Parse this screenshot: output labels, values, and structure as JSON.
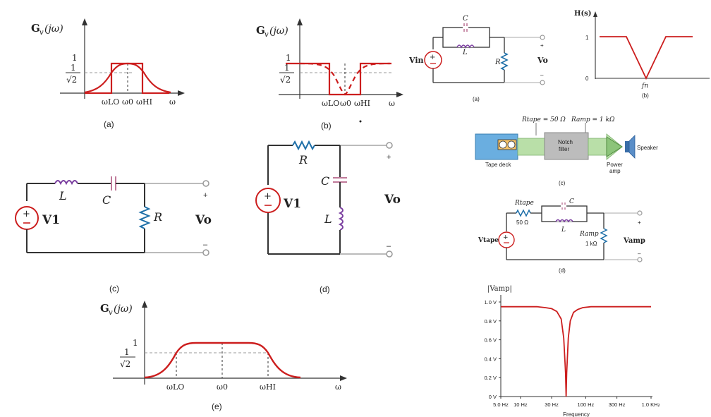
{
  "panel_a": {
    "ylabel": "G",
    "ylabel_sub": "v",
    "ylabel_arg": "(jω)",
    "tick_one": "1",
    "frac_num": "1",
    "frac_den": "√2",
    "x_lo": "ωLO",
    "x_0": "ω0",
    "x_hi": "ωHI",
    "x_omega": "ω",
    "caption": "(a)"
  },
  "panel_b": {
    "ylabel": "G",
    "ylabel_sub": "v",
    "ylabel_arg": "(jω)",
    "tick_one": "1",
    "frac_num": "1",
    "frac_den": "√2",
    "x_lo": "ωLO",
    "x_0": "ω0",
    "x_hi": "ωHI",
    "x_omega": "ω",
    "caption": "(b)"
  },
  "panel_c": {
    "L": "L",
    "C": "C",
    "R": "R",
    "source": "V1",
    "output": "Vo",
    "plus": "+",
    "minus": "–",
    "caption": "(c)"
  },
  "panel_d": {
    "R": "R",
    "C": "C",
    "L": "L",
    "source": "V1",
    "output": "Vo",
    "plus": "+",
    "minus": "–",
    "caption": "(d)"
  },
  "panel_e": {
    "ylabel": "G",
    "ylabel_sub": "v",
    "ylabel_arg": "(jω)",
    "tick_one": "1",
    "frac_num": "1",
    "frac_den": "√2",
    "x_lo": "ωLO",
    "x_0": "ω0",
    "x_hi": "ωHI",
    "x_omega": "ω",
    "caption": "(e)"
  },
  "right_a": {
    "C": "C",
    "L": "L",
    "R": "R",
    "source": "Vin",
    "output": "Vo",
    "plus": "+",
    "minus": "–",
    "caption": "(a)"
  },
  "right_b": {
    "ylabel": "H(s)",
    "tick_one": "1",
    "tick_zero": "0",
    "fn": "fn",
    "caption": "(b)"
  },
  "right_c": {
    "r_tape": "Rtape = 50 Ω",
    "r_amp": "Ramp = 1 kΩ",
    "tape_deck": "Tape deck",
    "notch_1": "Notch",
    "notch_2": "filter",
    "power_1": "Power",
    "power_2": "amp",
    "speaker": "Speaker",
    "caption": "(c)"
  },
  "right_d": {
    "r_tape": "Rtape",
    "r_tape_val": "50 Ω",
    "C": "C",
    "L": "L",
    "r_amp": "Ramp",
    "r_amp_val": "1 kΩ",
    "source": "Vtape",
    "output": "Vamp",
    "plus": "+",
    "minus": "–",
    "caption": "(d)"
  },
  "chart_data": {
    "type": "line",
    "title": "",
    "ylabel": "|Vamp|",
    "xlabel": "Frequency",
    "xscale": "log",
    "xlim": [
      5,
      1000
    ],
    "ylim": [
      0,
      1.0
    ],
    "y_ticks": [
      "0 V",
      "0.2 V",
      "0.4 V",
      "0.6 V",
      "0.8 V",
      "1.0 V"
    ],
    "x_ticks": [
      "5.0 Hz",
      "10 Hz",
      "30 Hz",
      "100 Hz",
      "300 Hz",
      "1.0 KHz"
    ],
    "x_tick_values": [
      5,
      10,
      30,
      100,
      300,
      1000
    ],
    "color": "#cc1e1e",
    "series": [
      {
        "x": [
          5,
          8,
          12,
          18,
          24,
          30,
          36,
          42,
          46,
          49,
          50,
          51,
          54,
          58,
          65,
          75,
          90,
          120,
          180,
          300,
          500,
          800,
          1000
        ],
        "y": [
          0.95,
          0.95,
          0.95,
          0.95,
          0.94,
          0.93,
          0.9,
          0.82,
          0.62,
          0.25,
          0.0,
          0.25,
          0.62,
          0.8,
          0.89,
          0.92,
          0.94,
          0.95,
          0.95,
          0.95,
          0.95,
          0.95,
          0.95
        ]
      }
    ]
  }
}
